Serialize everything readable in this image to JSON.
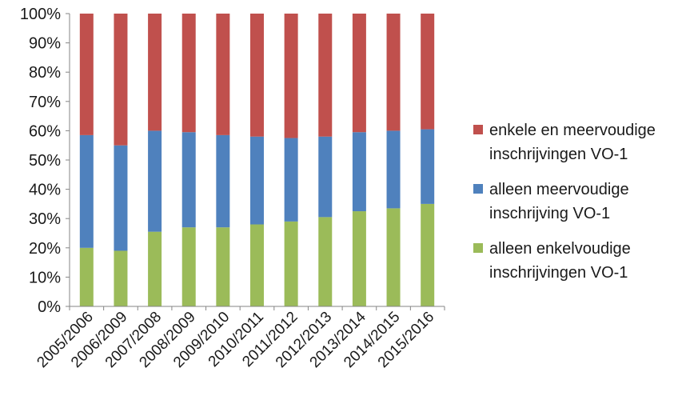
{
  "chart_data": {
    "type": "bar",
    "stacked": true,
    "percent": true,
    "categories": [
      "2005/2006",
      "2006/2009",
      "2007/2008",
      "2008/2009",
      "2009/2010",
      "2010/2011",
      "2011/2012",
      "2012/2013",
      "2013/2014",
      "2014/2015",
      "2015/2016"
    ],
    "series": [
      {
        "name": "alleen enkelvoudige inschrijvingen VO-1",
        "color": "#9bbb59",
        "values": [
          20,
          19,
          25.5,
          27,
          27,
          28,
          29,
          30.5,
          32.5,
          33.5,
          35
        ]
      },
      {
        "name": "alleen meervoudige inschrijving VO-1",
        "color": "#4f81bd",
        "values": [
          38.5,
          36,
          34.5,
          32.5,
          31.5,
          30,
          28.5,
          27.5,
          27,
          26.5,
          25.5
        ]
      },
      {
        "name": "enkele en meervoudige inschrijvingen VO-1",
        "color": "#c0504d",
        "values": [
          41.5,
          45,
          40,
          40.5,
          41.5,
          42,
          42.5,
          42,
          40.5,
          40,
          39.5
        ]
      }
    ],
    "yticks": [
      "0%",
      "10%",
      "20%",
      "30%",
      "40%",
      "50%",
      "60%",
      "70%",
      "80%",
      "90%",
      "100%"
    ],
    "ylim": [
      0,
      100
    ],
    "legend_position": "right"
  },
  "legend": [
    {
      "label": "enkele en meervoudige inschrijvingen VO-1",
      "color": "#c0504d"
    },
    {
      "label": "alleen meervoudige inschrijving VO-1",
      "color": "#4f81bd"
    },
    {
      "label": "alleen enkelvoudige inschrijvingen VO-1",
      "color": "#9bbb59"
    }
  ]
}
